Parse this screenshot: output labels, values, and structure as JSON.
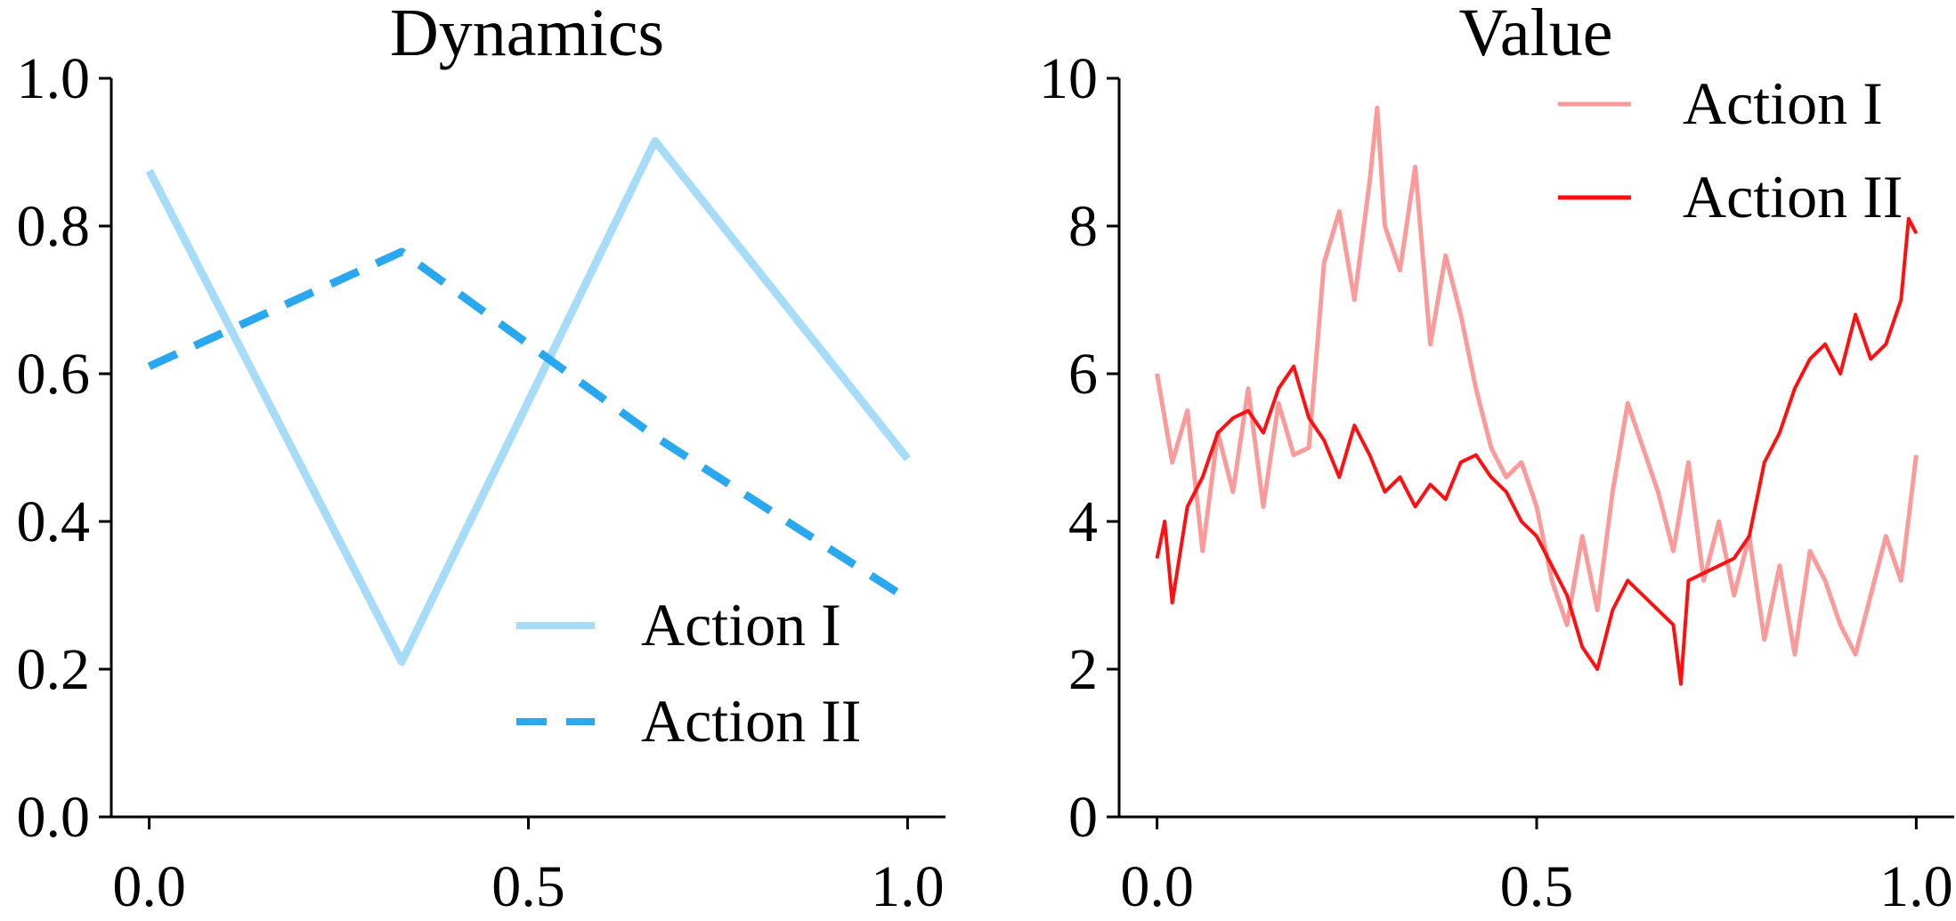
{
  "chart_data": [
    {
      "type": "line",
      "title": "Dynamics",
      "xlabel": "",
      "ylabel": "",
      "xlim": [
        -0.05,
        1.05
      ],
      "ylim": [
        0.0,
        1.0
      ],
      "xticks": [
        "0.0",
        "0.5",
        "1.0"
      ],
      "xtick_values": [
        0.0,
        0.5,
        1.0
      ],
      "yticks": [
        "0.0",
        "0.2",
        "0.4",
        "0.6",
        "0.8",
        "1.0"
      ],
      "ytick_values": [
        0.0,
        0.2,
        0.4,
        0.6,
        0.8,
        1.0
      ],
      "legend_position": "lower-right",
      "grid": false,
      "series": [
        {
          "name": "Action I",
          "color": "#a6dcf7",
          "style": "solid",
          "x": [
            0.0,
            0.333,
            0.667,
            1.0
          ],
          "y": [
            0.875,
            0.21,
            0.915,
            0.485
          ]
        },
        {
          "name": "Action II",
          "color": "#29a8ef",
          "style": "dashed",
          "x": [
            0.0,
            0.333,
            0.667,
            1.0
          ],
          "y": [
            0.61,
            0.765,
            0.515,
            0.295
          ]
        }
      ]
    },
    {
      "type": "line",
      "title": "Value",
      "xlabel": "",
      "ylabel": "",
      "xlim": [
        -0.05,
        1.05
      ],
      "ylim": [
        0,
        10
      ],
      "xticks": [
        "0.0",
        "0.5",
        "1.0"
      ],
      "xtick_values": [
        0.0,
        0.5,
        1.0
      ],
      "yticks": [
        "0",
        "2",
        "4",
        "6",
        "8",
        "10"
      ],
      "ytick_values": [
        0,
        2,
        4,
        6,
        8,
        10
      ],
      "legend_position": "upper-right",
      "grid": false,
      "series": [
        {
          "name": "Action I",
          "color": "#fb9a9a",
          "style": "solid",
          "x": [
            0.0,
            0.02,
            0.04,
            0.06,
            0.08,
            0.1,
            0.12,
            0.14,
            0.16,
            0.18,
            0.2,
            0.22,
            0.24,
            0.26,
            0.28,
            0.29,
            0.3,
            0.32,
            0.34,
            0.36,
            0.38,
            0.4,
            0.42,
            0.44,
            0.46,
            0.48,
            0.5,
            0.52,
            0.54,
            0.56,
            0.58,
            0.6,
            0.62,
            0.64,
            0.66,
            0.68,
            0.7,
            0.72,
            0.74,
            0.76,
            0.78,
            0.8,
            0.82,
            0.84,
            0.86,
            0.88,
            0.9,
            0.92,
            0.94,
            0.96,
            0.98,
            1.0
          ],
          "y": [
            6.0,
            4.8,
            5.5,
            3.6,
            5.2,
            4.4,
            5.8,
            4.2,
            5.6,
            4.9,
            5.0,
            7.5,
            8.2,
            7.0,
            8.6,
            9.6,
            8.0,
            7.4,
            8.8,
            6.4,
            7.6,
            6.8,
            5.8,
            5.0,
            4.6,
            4.8,
            4.2,
            3.2,
            2.6,
            3.8,
            2.8,
            4.4,
            5.6,
            5.0,
            4.4,
            3.6,
            4.8,
            3.2,
            4.0,
            3.0,
            3.8,
            2.4,
            3.4,
            2.2,
            3.6,
            3.2,
            2.6,
            2.2,
            3.0,
            3.8,
            3.2,
            4.9
          ]
        },
        {
          "name": "Action II",
          "color": "#ff0f0f",
          "style": "solid",
          "x": [
            0.0,
            0.01,
            0.02,
            0.04,
            0.06,
            0.08,
            0.1,
            0.12,
            0.14,
            0.16,
            0.18,
            0.2,
            0.22,
            0.24,
            0.26,
            0.28,
            0.3,
            0.32,
            0.34,
            0.36,
            0.38,
            0.4,
            0.42,
            0.44,
            0.46,
            0.48,
            0.5,
            0.52,
            0.54,
            0.56,
            0.58,
            0.6,
            0.62,
            0.64,
            0.66,
            0.68,
            0.69,
            0.7,
            0.72,
            0.74,
            0.76,
            0.78,
            0.8,
            0.82,
            0.84,
            0.86,
            0.88,
            0.9,
            0.92,
            0.94,
            0.96,
            0.98,
            0.99,
            1.0
          ],
          "y": [
            3.5,
            4.0,
            2.9,
            4.2,
            4.6,
            5.2,
            5.4,
            5.5,
            5.2,
            5.8,
            6.1,
            5.4,
            5.1,
            4.6,
            5.3,
            4.9,
            4.4,
            4.6,
            4.2,
            4.5,
            4.3,
            4.8,
            4.9,
            4.6,
            4.4,
            4.0,
            3.8,
            3.4,
            3.0,
            2.3,
            2.0,
            2.8,
            3.2,
            3.0,
            2.8,
            2.6,
            1.8,
            3.2,
            3.3,
            3.4,
            3.5,
            3.8,
            4.8,
            5.2,
            5.8,
            6.2,
            6.4,
            6.0,
            6.8,
            6.2,
            6.4,
            7.0,
            8.1,
            7.9
          ]
        }
      ]
    }
  ]
}
